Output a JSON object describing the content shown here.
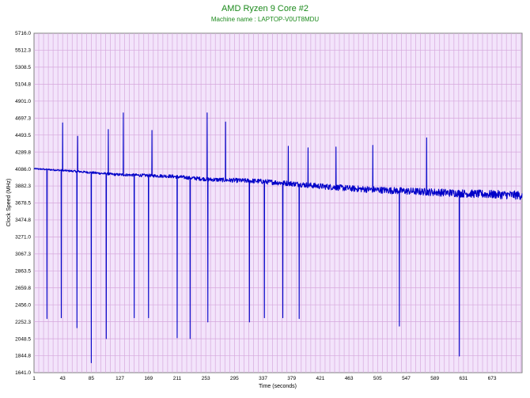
{
  "chart_data": {
    "type": "line",
    "title": "AMD Ryzen 9 Core #2",
    "subtitle": "Machine name : LAPTOP-V0UT8MDU",
    "xlabel": "Time (seconds)",
    "ylabel": "Clock Speed (MHz)",
    "xlim": [
      1,
      717
    ],
    "ylim": [
      1641.0,
      5716.0
    ],
    "x_ticks": [
      "1",
      "43",
      "85",
      "127",
      "169",
      "211",
      "253",
      "295",
      "337",
      "379",
      "421",
      "463",
      "505",
      "547",
      "589",
      "631",
      "673"
    ],
    "y_ticks": [
      "5716.0",
      "5512.3",
      "5308.5",
      "5104.8",
      "4901.0",
      "4697.3",
      "4493.5",
      "4289.8",
      "4086.0",
      "3882.3",
      "3678.5",
      "3474.8",
      "3271.0",
      "3067.3",
      "2863.5",
      "2659.8",
      "2456.0",
      "2252.3",
      "2048.5",
      "1844.8",
      "1641.0"
    ],
    "grid": true,
    "series": [
      {
        "name": "",
        "baseline": [
          [
            1,
            4090
          ],
          [
            60,
            4060
          ],
          [
            120,
            4020
          ],
          [
            200,
            4000
          ],
          [
            260,
            3960
          ],
          [
            330,
            3940
          ],
          [
            380,
            3910
          ],
          [
            420,
            3880
          ],
          [
            470,
            3850
          ],
          [
            520,
            3830
          ],
          [
            580,
            3810
          ],
          [
            640,
            3790
          ],
          [
            717,
            3770
          ]
        ],
        "dips": [
          [
            20,
            2290
          ],
          [
            41,
            2300
          ],
          [
            64,
            2180
          ],
          [
            85,
            1760
          ],
          [
            107,
            2050
          ],
          [
            148,
            2300
          ],
          [
            169,
            2300
          ],
          [
            211,
            2060
          ],
          [
            230,
            2050
          ],
          [
            256,
            2250
          ],
          [
            317,
            2250
          ],
          [
            339,
            2300
          ],
          [
            366,
            2300
          ],
          [
            390,
            2290
          ],
          [
            537,
            2200
          ],
          [
            625,
            1840
          ]
        ],
        "spikes": [
          [
            43,
            4640
          ],
          [
            65,
            4480
          ],
          [
            110,
            4560
          ],
          [
            132,
            4760
          ],
          [
            174,
            4550
          ],
          [
            255,
            4760
          ],
          [
            282,
            4650
          ],
          [
            374,
            4360
          ],
          [
            403,
            4340
          ],
          [
            444,
            4350
          ],
          [
            498,
            4370
          ],
          [
            577,
            4460
          ]
        ]
      }
    ],
    "colors": {
      "line": "#0000c8",
      "plot_background": "#f3e4fb",
      "grid": "#d6a8dc",
      "frame": "#808080",
      "title": "#1c8a1c"
    }
  }
}
